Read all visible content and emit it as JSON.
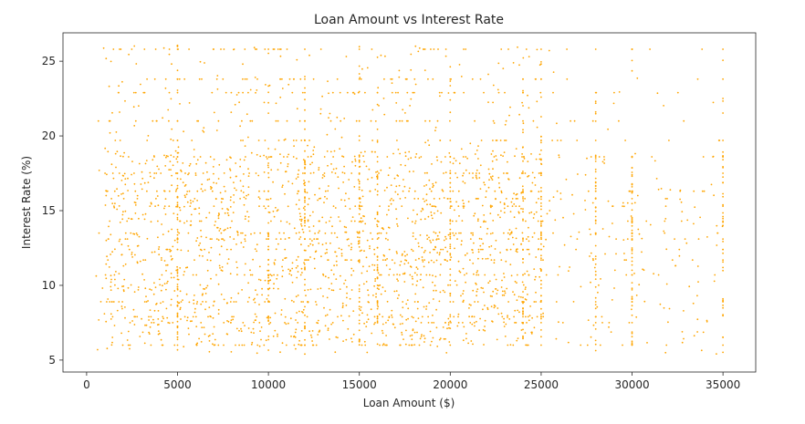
{
  "chart_data": {
    "type": "scatter",
    "title": "Loan Amount vs Interest Rate",
    "xlabel": "Loan Amount ($)",
    "ylabel": "Interest Rate (%)",
    "xlim": [
      -1300,
      36800
    ],
    "ylim": [
      4.2,
      26.9
    ],
    "xticks": [
      0,
      5000,
      10000,
      15000,
      20000,
      25000,
      30000,
      35000
    ],
    "yticks": [
      5,
      10,
      15,
      20,
      25
    ],
    "grid": false,
    "legend": "none",
    "point_color": "#FFA500",
    "series": [
      {
        "distribution": "dense point cloud",
        "x_range": [
          500,
          35000
        ],
        "y_range": [
          5.4,
          26.1
        ],
        "dense_x_range": [
          1000,
          25000
        ],
        "dense_y_range": [
          6,
          19
        ],
        "common_x_values": [
          5000,
          10000,
          12000,
          15000,
          16000,
          20000,
          24000,
          25000,
          28000,
          30000,
          35000
        ],
        "common_y_values": [
          6.0,
          7.5,
          7.9,
          8.9,
          10.7,
          11.7,
          12.4,
          13.1,
          13.5,
          14.3,
          15.3,
          15.8,
          16.3,
          17.5,
          18.6,
          19.7,
          21.0,
          22.9,
          23.8,
          25.8
        ]
      }
    ]
  }
}
